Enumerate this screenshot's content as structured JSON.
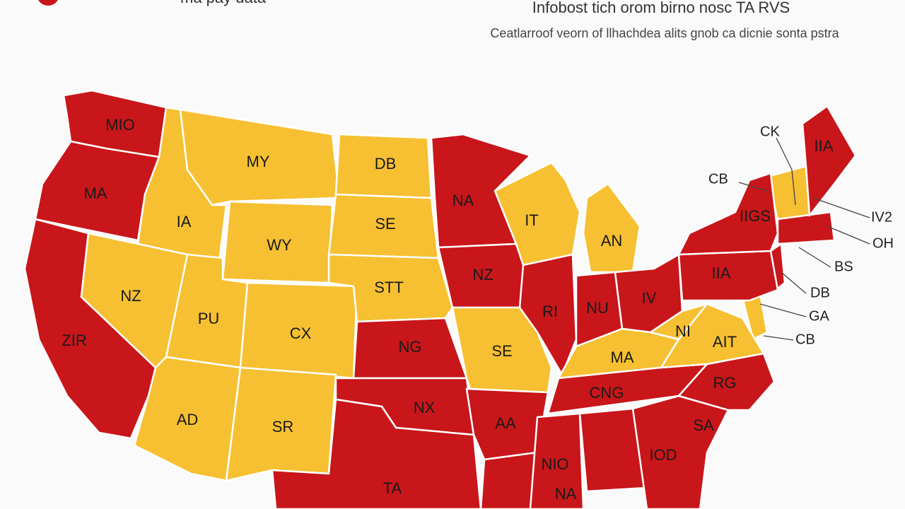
{
  "header": {
    "corner_text": "ma pay data",
    "title": "Infobost tich orom birno nosc TA RVS",
    "subtitle": "Ceatlarroof veorn of llhachdea alits gnob ca dicnie sonta pstra"
  },
  "regions": [
    {
      "label": "MIO",
      "color": "#c8161a"
    },
    {
      "label": "MA",
      "color": "#c8161a"
    },
    {
      "label": "ZIR",
      "color": "#c8161a"
    },
    {
      "label": "IA",
      "color": "#f6c032"
    },
    {
      "label": "NZ",
      "color": "#f6c032"
    },
    {
      "label": "MY",
      "color": "#f6c032"
    },
    {
      "label": "WY",
      "color": "#f6c032"
    },
    {
      "label": "PU",
      "color": "#f6c032"
    },
    {
      "label": "CX",
      "color": "#f6c032"
    },
    {
      "label": "AD",
      "color": "#f6c032"
    },
    {
      "label": "SR",
      "color": "#f6c032"
    },
    {
      "label": "DB",
      "color": "#f6c032"
    },
    {
      "label": "SE",
      "color": "#f6c032"
    },
    {
      "label": "STT",
      "color": "#f6c032"
    },
    {
      "label": "NG",
      "color": "#c8161a"
    },
    {
      "label": "NX",
      "color": "#c8161a"
    },
    {
      "label": "TA",
      "color": "#c8161a"
    },
    {
      "label": "NA",
      "color": "#c8161a"
    },
    {
      "label": "NZ",
      "color": "#c8161a"
    },
    {
      "label": "SE",
      "color": "#f6c032"
    },
    {
      "label": "AA",
      "color": "#c8161a"
    },
    {
      "label": "NA",
      "color": "#c8161a"
    },
    {
      "label": "IT",
      "color": "#f6c032"
    },
    {
      "label": "RI",
      "color": "#c8161a"
    },
    {
      "label": "AN",
      "color": "#f6c032"
    },
    {
      "label": "NU",
      "color": "#c8161a"
    },
    {
      "label": "IV",
      "color": "#c8161a"
    },
    {
      "label": "MA",
      "color": "#f6c032"
    },
    {
      "label": "CNG",
      "color": "#c8161a"
    },
    {
      "label": "NIO",
      "color": "#c8161a"
    },
    {
      "label": "IOD",
      "color": "#c8161a"
    },
    {
      "label": "SA",
      "color": "#c8161a"
    },
    {
      "label": "RG",
      "color": "#c8161a"
    },
    {
      "label": "AIT",
      "color": "#f6c032"
    },
    {
      "label": "NI",
      "color": "#f6c032"
    },
    {
      "label": "IIA",
      "color": "#c8161a"
    },
    {
      "label": "IIGS",
      "color": "#c8161a"
    },
    {
      "label": "IIA",
      "color": "#c8161a"
    }
  ],
  "callouts": [
    "CK",
    "CB",
    "IV2",
    "OH",
    "BS",
    "DB",
    "GA",
    "CB"
  ]
}
